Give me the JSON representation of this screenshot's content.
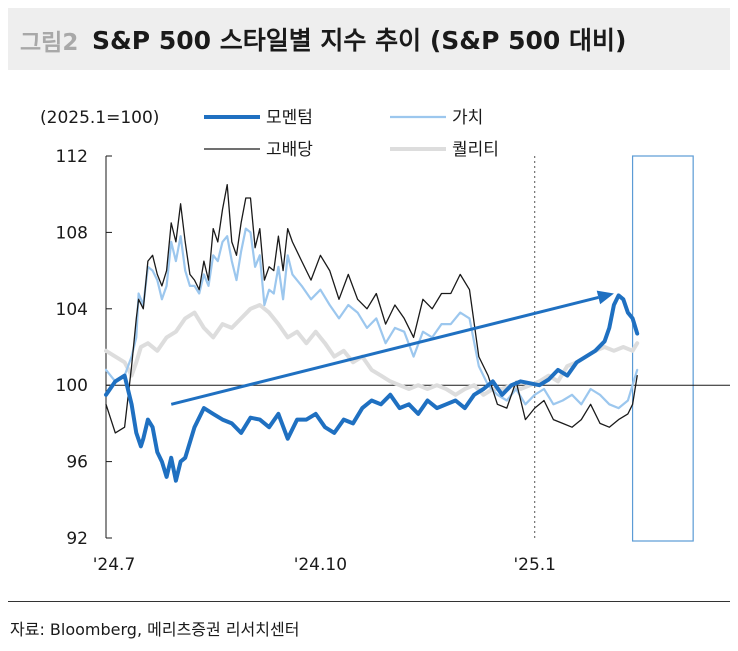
{
  "figure": {
    "number": "그림2",
    "title": "S&P 500 스타일별 지수 추이 (S&P 500 대비)"
  },
  "source": "자료: Bloomberg, 메리츠증권 리서치센터",
  "chart_data": {
    "type": "line",
    "title": "S&P 500 스타일별 지수 추이 (S&P 500 대비)",
    "unit_label": "(2025.1=100)",
    "ylim": [
      92,
      112
    ],
    "yticks": [
      92,
      96,
      100,
      104,
      108,
      112
    ],
    "xlim": [
      0,
      245
    ],
    "xticks": [
      {
        "label": "'24.7",
        "x": 0
      },
      {
        "label": "'24.10",
        "x": 92
      },
      {
        "label": "'25.1",
        "x": 184
      }
    ],
    "reference_line": {
      "y": 100
    },
    "vertical_marker": {
      "x": 184,
      "style": "dotted"
    },
    "highlight_box": {
      "x_start": 226,
      "x_end": 252
    },
    "annotation_arrow": {
      "from": {
        "x": 28,
        "y": 99.0
      },
      "to": {
        "x": 218,
        "y": 104.8
      }
    },
    "legend_placement": "top",
    "series": [
      {
        "name": "모멘텀",
        "color": "#1f70c1",
        "style": "thick",
        "x": [
          0,
          4,
          8,
          11,
          13,
          15,
          16,
          18,
          20,
          22,
          24,
          26,
          28,
          30,
          32,
          34,
          38,
          42,
          46,
          50,
          54,
          58,
          62,
          66,
          70,
          74,
          78,
          82,
          86,
          90,
          94,
          98,
          102,
          106,
          110,
          114,
          118,
          122,
          126,
          130,
          134,
          138,
          142,
          146,
          150,
          154,
          158,
          162,
          166,
          170,
          174,
          178,
          182,
          186,
          190,
          194,
          198,
          202,
          206,
          210,
          214,
          216,
          218,
          220,
          222,
          224,
          226,
          228
        ],
        "values": [
          99.5,
          100.2,
          100.5,
          99.0,
          97.5,
          96.8,
          97.2,
          98.2,
          97.8,
          96.5,
          96.0,
          95.2,
          96.2,
          95.0,
          96.0,
          96.2,
          97.8,
          98.8,
          98.5,
          98.2,
          98.0,
          97.5,
          98.3,
          98.2,
          97.8,
          98.5,
          97.2,
          98.2,
          98.2,
          98.5,
          97.8,
          97.5,
          98.2,
          98.0,
          98.8,
          99.2,
          99.0,
          99.5,
          98.8,
          99.0,
          98.5,
          99.2,
          98.8,
          99.0,
          99.2,
          98.8,
          99.5,
          99.8,
          100.2,
          99.5,
          100.0,
          100.2,
          100.1,
          100.0,
          100.3,
          100.8,
          100.5,
          101.2,
          101.5,
          101.8,
          102.3,
          103.0,
          104.2,
          104.7,
          104.5,
          103.8,
          103.5,
          102.7
        ]
      },
      {
        "name": "가치",
        "color": "#9cc7ee",
        "style": "medium",
        "x": [
          0,
          4,
          8,
          11,
          13,
          14,
          16,
          18,
          20,
          22,
          24,
          26,
          28,
          30,
          32,
          34,
          36,
          38,
          40,
          42,
          44,
          46,
          48,
          50,
          52,
          54,
          56,
          58,
          60,
          62,
          64,
          66,
          68,
          70,
          72,
          74,
          76,
          78,
          80,
          84,
          88,
          92,
          96,
          100,
          104,
          108,
          112,
          116,
          120,
          124,
          128,
          132,
          136,
          140,
          144,
          148,
          152,
          156,
          160,
          164,
          168,
          172,
          176,
          180,
          184,
          188,
          192,
          196,
          200,
          204,
          208,
          212,
          216,
          220,
          224,
          228
        ],
        "values": [
          100.8,
          100.2,
          100.5,
          101.5,
          102.5,
          104.8,
          104.2,
          106.2,
          106.0,
          105.5,
          104.5,
          105.2,
          107.5,
          106.5,
          107.8,
          106.0,
          105.2,
          105.2,
          104.8,
          105.8,
          105.2,
          106.8,
          106.5,
          107.5,
          107.8,
          106.5,
          105.5,
          107.0,
          108.2,
          108.0,
          106.2,
          106.8,
          104.2,
          105.0,
          104.8,
          106.2,
          104.5,
          106.8,
          105.8,
          105.2,
          104.5,
          105.0,
          104.2,
          103.5,
          104.2,
          103.8,
          103.0,
          103.5,
          102.2,
          103.0,
          102.8,
          101.5,
          102.8,
          102.5,
          103.2,
          103.2,
          103.8,
          103.5,
          101.0,
          100.0,
          99.5,
          99.2,
          99.8,
          99.0,
          99.5,
          99.8,
          99.0,
          99.2,
          99.5,
          99.0,
          99.8,
          99.5,
          99.0,
          98.8,
          99.2,
          100.8
        ]
      },
      {
        "name": "고배당",
        "color": "#1a1a1a",
        "style": "thin",
        "x": [
          0,
          4,
          8,
          11,
          13,
          14,
          16,
          18,
          20,
          22,
          24,
          26,
          28,
          30,
          32,
          34,
          36,
          38,
          40,
          42,
          44,
          46,
          48,
          50,
          52,
          54,
          56,
          58,
          60,
          62,
          64,
          66,
          68,
          70,
          72,
          74,
          76,
          78,
          80,
          84,
          88,
          92,
          96,
          100,
          104,
          108,
          112,
          116,
          120,
          124,
          128,
          132,
          136,
          140,
          144,
          148,
          152,
          156,
          160,
          164,
          168,
          172,
          176,
          180,
          184,
          188,
          192,
          196,
          200,
          204,
          208,
          212,
          216,
          220,
          224,
          226,
          228
        ],
        "values": [
          99.0,
          97.5,
          97.8,
          101.0,
          103.5,
          104.5,
          104.0,
          106.5,
          106.8,
          105.8,
          105.2,
          106.0,
          108.5,
          107.5,
          109.5,
          107.5,
          105.8,
          105.5,
          105.0,
          106.5,
          105.5,
          108.2,
          107.5,
          109.2,
          110.5,
          107.5,
          106.8,
          108.5,
          109.8,
          109.8,
          107.2,
          108.2,
          105.5,
          106.2,
          106.0,
          107.8,
          106.0,
          108.2,
          107.5,
          106.5,
          105.5,
          106.8,
          106.0,
          104.5,
          105.8,
          104.5,
          104.0,
          104.8,
          103.2,
          104.2,
          103.5,
          102.5,
          104.5,
          104.0,
          104.8,
          104.8,
          105.8,
          105.0,
          101.5,
          100.5,
          99.0,
          98.8,
          100.2,
          98.2,
          98.8,
          99.2,
          98.2,
          98.0,
          97.8,
          98.2,
          99.0,
          98.0,
          97.8,
          98.2,
          98.5,
          99.0,
          100.5
        ]
      },
      {
        "name": "퀄리티",
        "color": "#dddddd",
        "style": "thick",
        "x": [
          0,
          4,
          8,
          11,
          13,
          15,
          18,
          22,
          26,
          30,
          34,
          38,
          42,
          46,
          50,
          54,
          58,
          62,
          66,
          70,
          74,
          78,
          82,
          86,
          90,
          94,
          98,
          102,
          106,
          110,
          114,
          118,
          122,
          126,
          130,
          134,
          138,
          142,
          146,
          150,
          154,
          158,
          162,
          166,
          170,
          174,
          178,
          182,
          186,
          190,
          194,
          198,
          202,
          206,
          210,
          214,
          218,
          222,
          226,
          228
        ],
        "values": [
          101.8,
          101.5,
          101.2,
          100.5,
          101.2,
          102.0,
          102.2,
          101.8,
          102.5,
          102.8,
          103.5,
          103.8,
          103.0,
          102.5,
          103.2,
          103.0,
          103.5,
          104.0,
          104.2,
          103.8,
          103.2,
          102.5,
          102.8,
          102.2,
          102.8,
          102.2,
          101.5,
          101.8,
          101.2,
          101.5,
          100.8,
          100.5,
          100.2,
          100.0,
          99.8,
          100.0,
          99.8,
          100.0,
          99.8,
          99.5,
          99.8,
          100.0,
          99.5,
          99.8,
          99.8,
          100.0,
          99.8,
          100.0,
          100.2,
          100.5,
          100.2,
          101.0,
          101.2,
          101.5,
          101.8,
          102.0,
          101.8,
          102.0,
          101.8,
          102.2
        ]
      }
    ]
  }
}
